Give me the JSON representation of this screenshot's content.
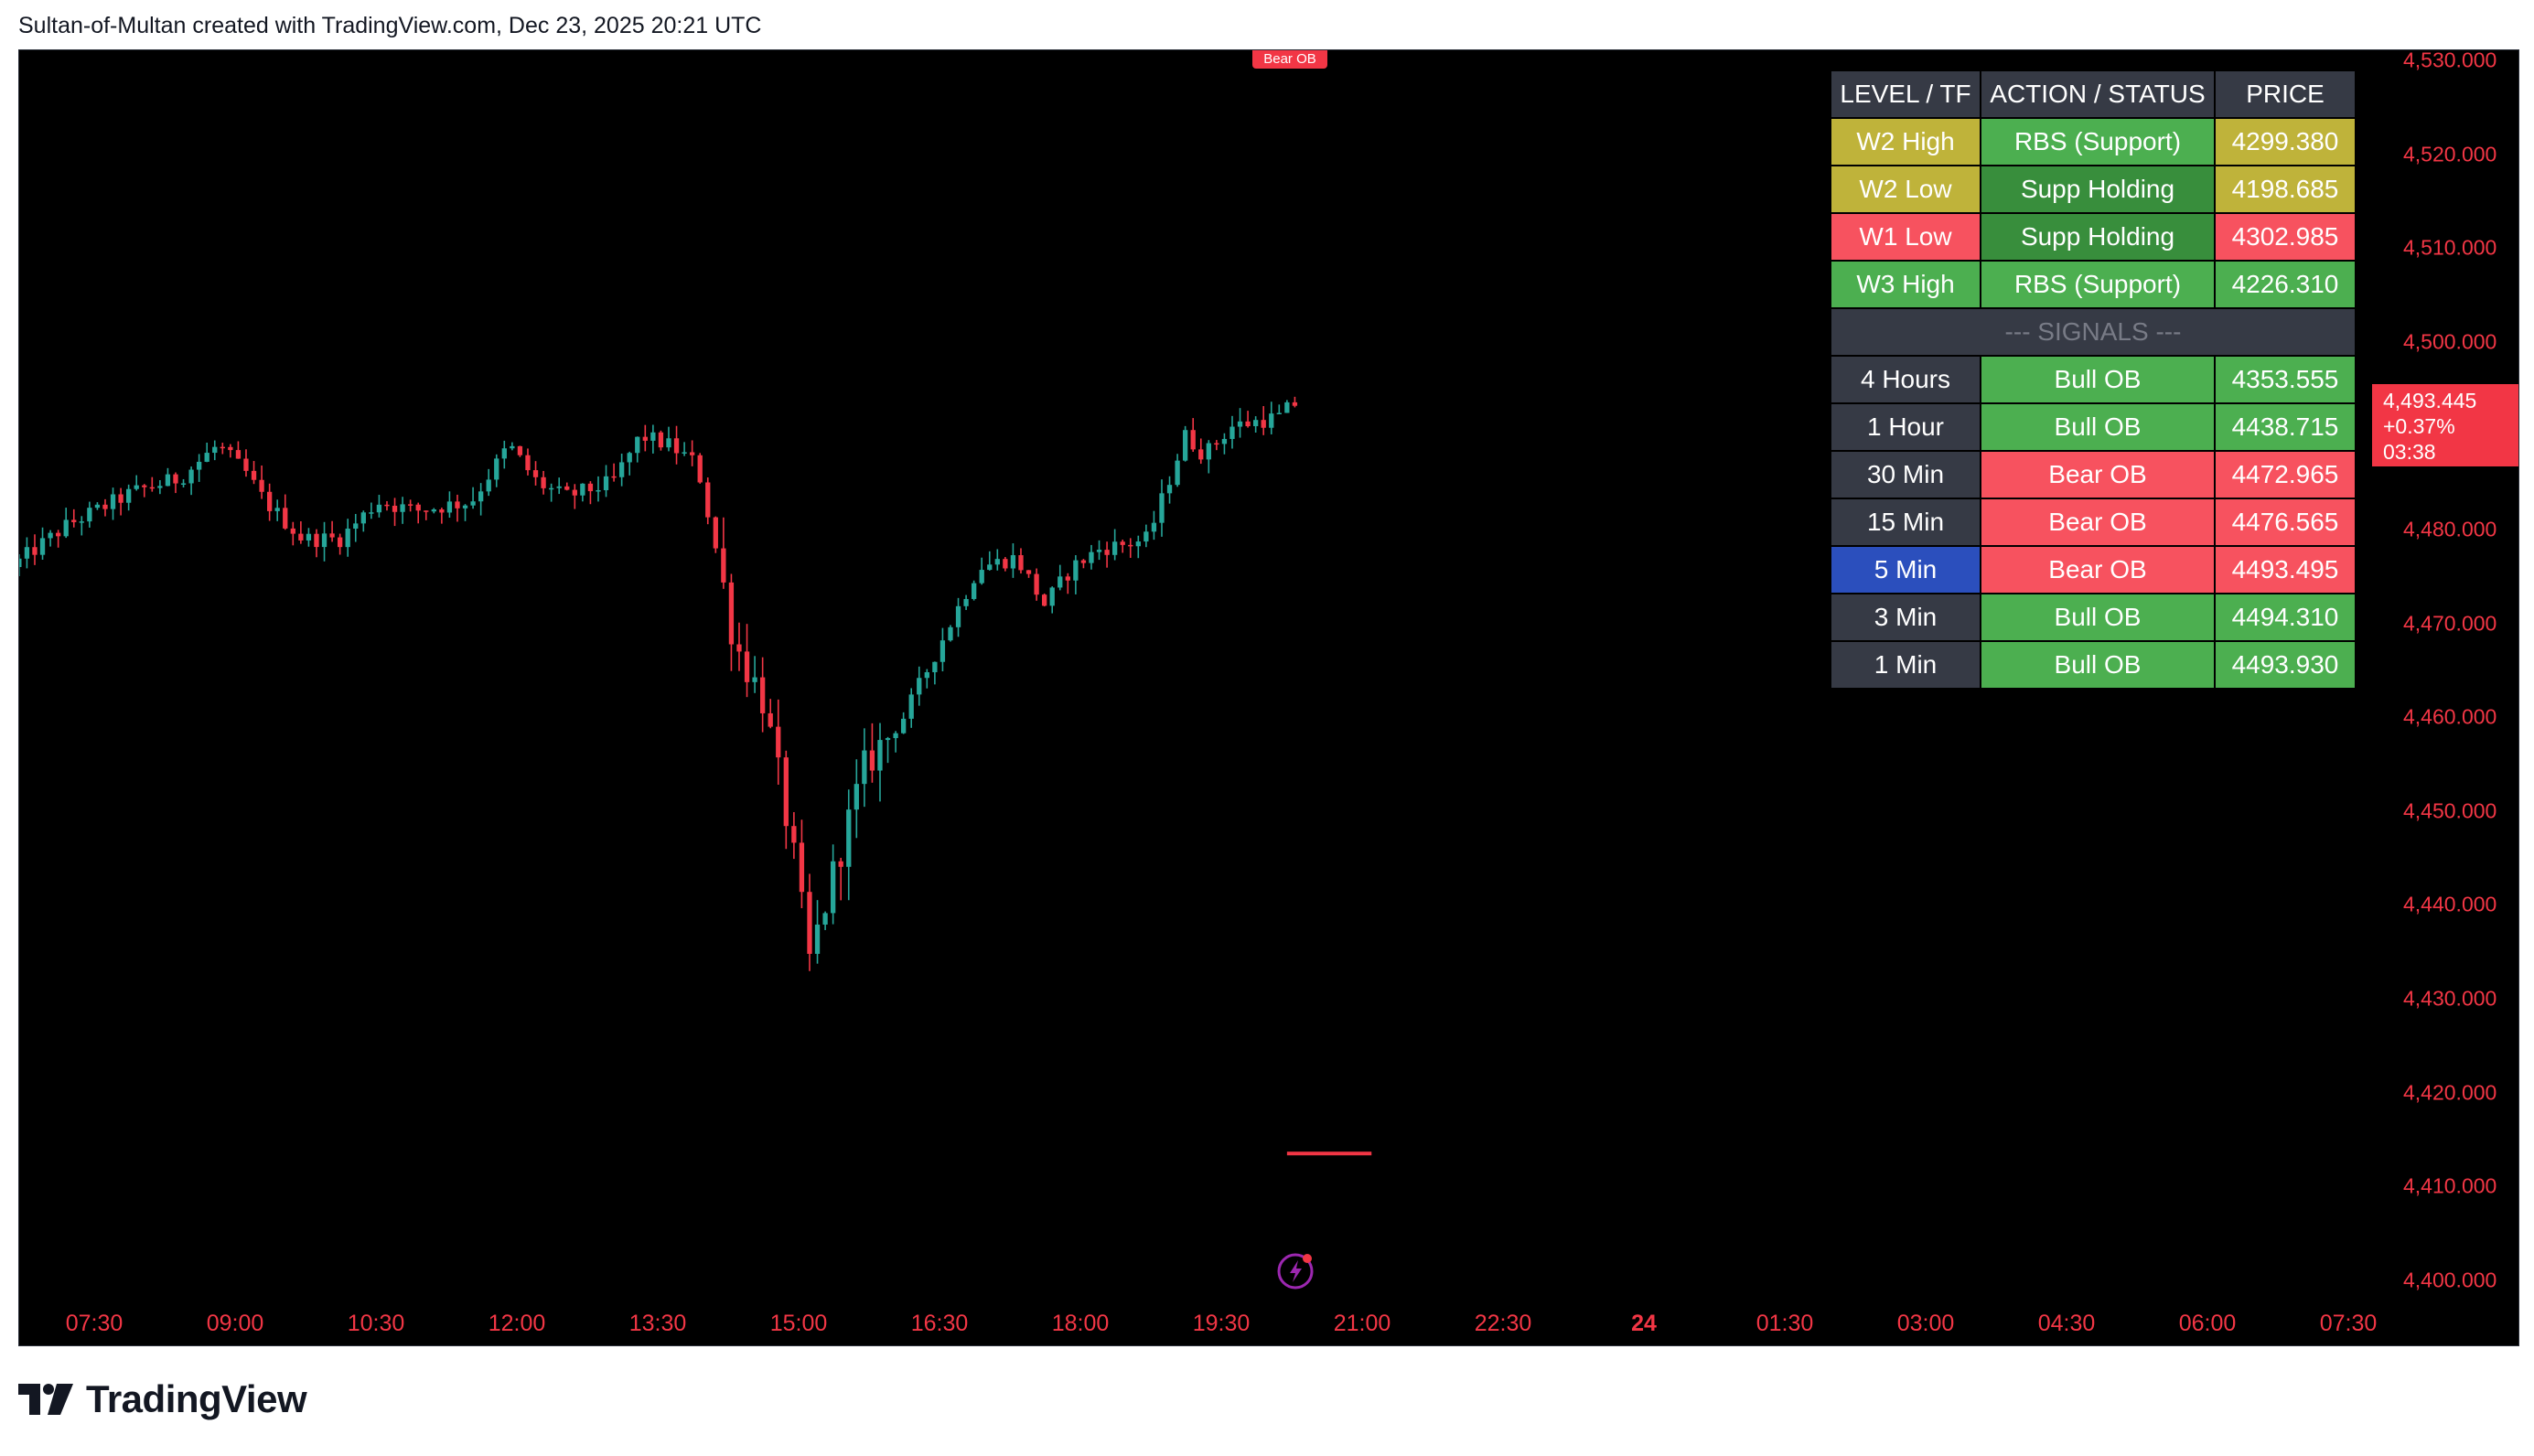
{
  "header": {
    "caption": "Sultan-of-Multan created with TradingView.com, Dec 23, 2025 20:21 UTC"
  },
  "brand": {
    "logo_text": "TradingView"
  },
  "colors": {
    "background": "#000000",
    "up": "#26a69a",
    "down": "#f23645",
    "axis_text": "#f23645",
    "header_bg": "#363a45",
    "neutral_bg": "#363a45",
    "olive": "#bfb33a",
    "red": "#f7525f",
    "green": "#4caf50",
    "dark_green": "#388e3c",
    "blue": "#2b4fbd"
  },
  "markers": {
    "bear_ob_tag": "Bear OB"
  },
  "last_price": {
    "price": "4,493.445",
    "change": "+0.37%",
    "countdown": "03:38"
  },
  "table": {
    "headers": [
      "LEVEL / TF",
      "ACTION / STATUS",
      "PRICE"
    ],
    "level_rows": [
      {
        "level": "W2 High",
        "status": "RBS (Support)",
        "price": "4299.380",
        "level_color": "#bfb33a",
        "status_color": "#4caf50",
        "price_color": "#bfb33a"
      },
      {
        "level": "W2 Low",
        "status": "Supp Holding",
        "price": "4198.685",
        "level_color": "#bfb33a",
        "status_color": "#388e3c",
        "price_color": "#bfb33a"
      },
      {
        "level": "W1 Low",
        "status": "Supp Holding",
        "price": "4302.985",
        "level_color": "#f7525f",
        "status_color": "#388e3c",
        "price_color": "#f7525f"
      },
      {
        "level": "W3 High",
        "status": "RBS (Support)",
        "price": "4226.310",
        "level_color": "#4caf50",
        "status_color": "#4caf50",
        "price_color": "#4caf50"
      }
    ],
    "signals_label": "--- SIGNALS ---",
    "signal_rows": [
      {
        "tf": "4 Hours",
        "signal": "Bull OB",
        "price": "4353.555",
        "tf_color": "#363a45",
        "signal_color": "#4caf50",
        "price_color": "#4caf50"
      },
      {
        "tf": "1 Hour",
        "signal": "Bull OB",
        "price": "4438.715",
        "tf_color": "#363a45",
        "signal_color": "#4caf50",
        "price_color": "#4caf50"
      },
      {
        "tf": "30 Min",
        "signal": "Bear OB",
        "price": "4472.965",
        "tf_color": "#363a45",
        "signal_color": "#f7525f",
        "price_color": "#f7525f"
      },
      {
        "tf": "15 Min",
        "signal": "Bear OB",
        "price": "4476.565",
        "tf_color": "#363a45",
        "signal_color": "#f7525f",
        "price_color": "#f7525f"
      },
      {
        "tf": "5 Min",
        "signal": "Bear OB",
        "price": "4493.495",
        "tf_color": "#2b4fbd",
        "signal_color": "#f7525f",
        "price_color": "#f7525f"
      },
      {
        "tf": "3 Min",
        "signal": "Bull OB",
        "price": "4494.310",
        "tf_color": "#363a45",
        "signal_color": "#4caf50",
        "price_color": "#4caf50"
      },
      {
        "tf": "1 Min",
        "signal": "Bull OB",
        "price": "4493.930",
        "tf_color": "#363a45",
        "signal_color": "#4caf50",
        "price_color": "#4caf50"
      }
    ]
  },
  "chart_data": {
    "type": "candlestick",
    "title": "",
    "xlabel": "",
    "ylabel": "",
    "ylim": [
      4395,
      4530
    ],
    "y_tick_labels": [
      "4,530.000",
      "4,520.000",
      "4,510.000",
      "4,500.000",
      "4,490.000",
      "4,480.000",
      "4,470.000",
      "4,460.000",
      "4,450.000",
      "4,440.000",
      "4,430.000",
      "4,420.000",
      "4,410.000",
      "4,400.000"
    ],
    "y_tick_values": [
      4530,
      4520,
      4510,
      4500,
      4490,
      4480,
      4470,
      4460,
      4450,
      4440,
      4430,
      4420,
      4410,
      4400
    ],
    "x_tick_labels": [
      "07:30",
      "09:00",
      "10:30",
      "12:00",
      "13:30",
      "15:00",
      "16:30",
      "18:00",
      "19:30",
      "21:00",
      "22:30",
      "24",
      "01:30",
      "03:00",
      "04:30",
      "06:00",
      "07:30"
    ],
    "x_tick_bold": [
      false,
      false,
      false,
      false,
      false,
      false,
      false,
      false,
      false,
      false,
      false,
      true,
      false,
      false,
      false,
      false,
      false
    ],
    "x_start": "06:40",
    "x_tick_hours": [
      7.5,
      9,
      10.5,
      12,
      13.5,
      15,
      16.5,
      18,
      19.5,
      21,
      22.5,
      24,
      25.5,
      27,
      28.5,
      30,
      31.5
    ],
    "x_range_hours": [
      6.7,
      32.0
    ],
    "candle_interval_min": 5,
    "anchors": [
      [
        6.7,
        4476
      ],
      [
        7.3,
        4480.5
      ],
      [
        8.0,
        4484
      ],
      [
        8.5,
        4485.5
      ],
      [
        8.9,
        4489
      ],
      [
        9.2,
        4486
      ],
      [
        9.4,
        4483
      ],
      [
        9.8,
        4479
      ],
      [
        10.2,
        4479
      ],
      [
        10.6,
        4483
      ],
      [
        11.0,
        4482
      ],
      [
        11.6,
        4483
      ],
      [
        12.0,
        4489
      ],
      [
        12.3,
        4485
      ],
      [
        12.6,
        4483.5
      ],
      [
        13.1,
        4485
      ],
      [
        13.4,
        4490
      ],
      [
        13.7,
        4489
      ],
      [
        14.0,
        4487
      ],
      [
        14.2,
        4478
      ],
      [
        14.4,
        4468
      ],
      [
        14.7,
        4462
      ],
      [
        15.0,
        4447
      ],
      [
        15.2,
        4434
      ],
      [
        15.5,
        4445
      ],
      [
        15.8,
        4455
      ],
      [
        16.2,
        4460
      ],
      [
        16.6,
        4468
      ],
      [
        17.0,
        4476
      ],
      [
        17.4,
        4477
      ],
      [
        17.7,
        4472
      ],
      [
        18.0,
        4476
      ],
      [
        18.3,
        4478
      ],
      [
        18.6,
        4478.5
      ],
      [
        18.8,
        4479
      ],
      [
        19.2,
        4490
      ],
      [
        19.4,
        4488
      ],
      [
        19.7,
        4491
      ],
      [
        20.2,
        4492
      ],
      [
        20.35,
        4493.4
      ]
    ],
    "bear_ob_zone": {
      "time_start": 20.2,
      "time_end": 21.1,
      "price": 4413.5
    }
  }
}
